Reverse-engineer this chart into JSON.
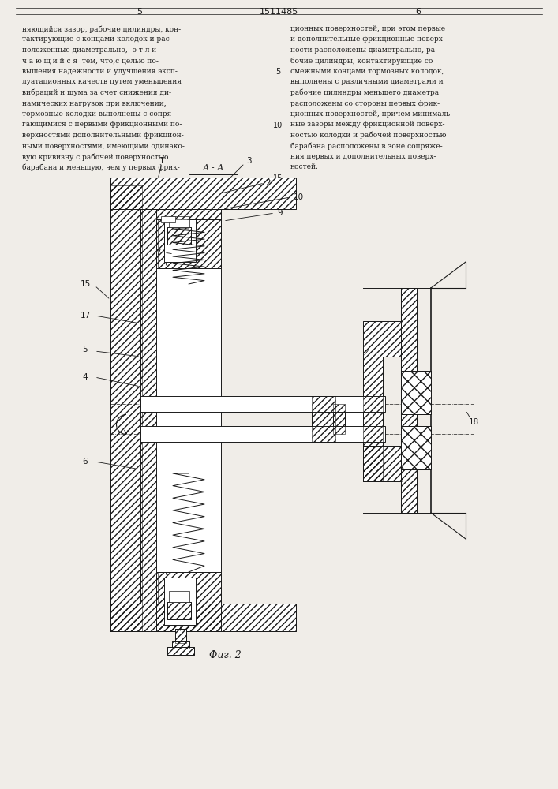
{
  "page_width": 7.07,
  "page_height": 10.0,
  "bg_color": "#f0ede8",
  "text_color": "#1a1a1a",
  "line_color": "#1a1a1a",
  "title_patent": "1511485",
  "page_left": "5",
  "page_right": "6",
  "top_text_left": [
    "няющийся зазор, рабочие цилиндры, кон-",
    "тактирующие с концами колодок и рас-",
    "положенные диаметрально,  о т л и -",
    "ч а ю щ и й с я  тем, что,с целью по-",
    "вышения надежности и улучшения эксп-",
    "луатационных качеств путем уменьшения",
    "вибраций и шума за счет снижения ди-",
    "намических нагрузок при включении,",
    "тормозные колодки выполнены с сопря-",
    "гающимися с первыми фрикционными по-",
    "верхностями дополнительными фрикцион-",
    "ными поверхностями, имеющими одинако-",
    "вую кривизну с рабочей поверхностью",
    "барабана и меньшую, чем у первых фрик-"
  ],
  "top_text_right": [
    "ционных поверхностей, при этом первые",
    "и дополнительные фрикционные поверх-",
    "ности расположены диаметрально, ра-",
    "бочие цилиндры, контактирующие со",
    "смежными концами тормозных колодок,",
    "выполнены с различными диаметрами и",
    "рабочие цилиндры меньшего диаметра",
    "расположены со стороны первых фрик-",
    "ционных поверхностей, причем минималь-",
    "ные зазоры между фрикционной поверх-",
    "ностью колодки и рабочей поверхностью",
    "барабана расположены в зоне сопряже-",
    "ния первых и дополнительных поверх-",
    "ностей."
  ],
  "fig_label": "Фиг. 2",
  "section_label": "А - А"
}
